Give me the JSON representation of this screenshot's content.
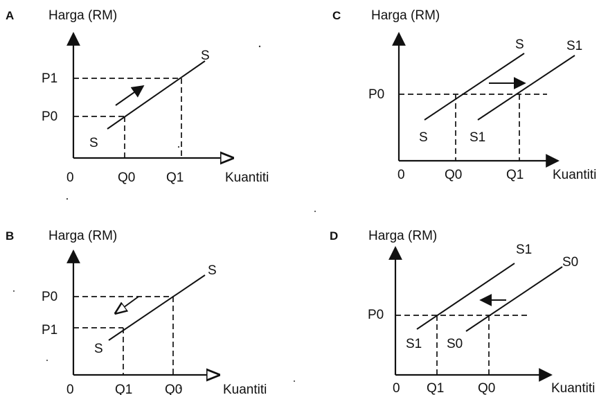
{
  "panels": [
    {
      "letter": "A",
      "ylabel": "Harga (RM)",
      "xlabel": "Kuantiti",
      "origin": "0",
      "y_ticks": [
        "P1",
        "P0"
      ],
      "x_ticks": [
        "Q0",
        "Q1"
      ],
      "curve_labels": [
        "S",
        "S"
      ]
    },
    {
      "letter": "B",
      "ylabel": "Harga (RM)",
      "xlabel": "Kuantiti",
      "origin": "0",
      "y_ticks": [
        "P0",
        "P1"
      ],
      "x_ticks": [
        "Q1",
        "Q0"
      ],
      "curve_labels": [
        "S",
        "S"
      ]
    },
    {
      "letter": "C",
      "ylabel": "Harga (RM)",
      "xlabel": "Kuantiti",
      "origin": "0",
      "y_ticks": [
        "P0"
      ],
      "x_ticks": [
        "Q0",
        "Q1"
      ],
      "curve_labels": [
        "S",
        "S1",
        "S",
        "S1"
      ]
    },
    {
      "letter": "D",
      "ylabel": "Harga (RM)",
      "xlabel": "Kuantiti",
      "origin": "0",
      "y_ticks": [
        "P0"
      ],
      "x_ticks": [
        "Q1",
        "Q0"
      ],
      "curve_labels": [
        "S1",
        "S0",
        "S1",
        "S0"
      ]
    }
  ]
}
